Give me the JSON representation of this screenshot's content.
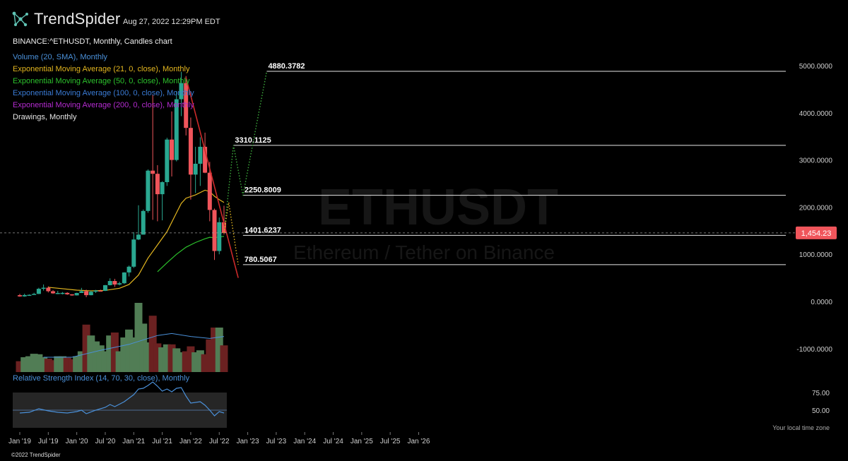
{
  "header": {
    "brand": "TrendSpider",
    "timestamp": "Aug 27, 2022 12:29PM EDT",
    "symbol": "BINANCE:^ETHUSDT, Monthly, Candles chart",
    "watermark": "ETHUSDT",
    "watermark_sub": "Ethereum / Tether on Binance",
    "logo_icon": "network-nodes-icon"
  },
  "legend": [
    {
      "label": "Volume (20, SMA), Monthly",
      "color": "#4a90d9"
    },
    {
      "label": "Exponential Moving Average (21, 0, close), Monthly",
      "color": "#e3b61f"
    },
    {
      "label": "Exponential Moving Average (50, 0, close), Monthly",
      "color": "#2cc12c"
    },
    {
      "label": "Exponential Moving Average (100, 0, close), Monthly",
      "color": "#3a7bd5"
    },
    {
      "label": "Exponential Moving Average (200, 0, close), Monthly",
      "color": "#b52bd1"
    },
    {
      "label": "Drawings, Monthly",
      "color": "#e6e6e6"
    }
  ],
  "rsi": {
    "title": "Relative Strength Index (14, 70, 30, close), Monthly",
    "levels": [
      75,
      50
    ]
  },
  "footer": {
    "timezone_note": "Your local time zone",
    "copyright": "©2022 TrendSpider"
  },
  "colors": {
    "up": "#2aa891",
    "down": "#f0555b",
    "vol_up": "#517d55",
    "vol_down": "#6b2121",
    "ema21": "#e3b61f",
    "ema50": "#2cc12c",
    "price_tag": "#f0555b",
    "trendline": "#cc2a2a"
  },
  "chart_data": {
    "type": "candlestick",
    "y_axis": {
      "ticks": [
        "5000.0000",
        "4000.0000",
        "3000.0000",
        "2000.0000",
        "1000.0000",
        "0.0000",
        "-1000.0000"
      ],
      "tick_values": [
        5000,
        4000,
        3000,
        2000,
        1000,
        0,
        -1000
      ],
      "ylim": [
        -1500,
        5200
      ]
    },
    "x_axis": {
      "ticks": [
        "Jan '19",
        "Jul '19",
        "Jan '20",
        "Jul '20",
        "Jan '21",
        "Jul '21",
        "Jan '22",
        "Jul '22",
        "Jan '23",
        "Jul '23",
        "Jan '24",
        "Jul '24",
        "Jan '25",
        "Jul '25",
        "Jan '26"
      ],
      "start": "2019-01",
      "end": "2026-01"
    },
    "current_price": {
      "label": "1,454.23",
      "value": 1454.23
    },
    "candles": [
      {
        "t": "2019-01",
        "o": 133,
        "h": 160,
        "l": 100,
        "c": 107
      },
      {
        "t": "2019-02",
        "o": 107,
        "h": 165,
        "l": 100,
        "c": 136
      },
      {
        "t": "2019-03",
        "o": 136,
        "h": 150,
        "l": 128,
        "c": 141
      },
      {
        "t": "2019-04",
        "o": 141,
        "h": 185,
        "l": 140,
        "c": 160
      },
      {
        "t": "2019-05",
        "o": 160,
        "h": 290,
        "l": 155,
        "c": 268
      },
      {
        "t": "2019-06",
        "o": 268,
        "h": 360,
        "l": 230,
        "c": 291
      },
      {
        "t": "2019-07",
        "o": 291,
        "h": 320,
        "l": 190,
        "c": 217
      },
      {
        "t": "2019-08",
        "o": 217,
        "h": 240,
        "l": 160,
        "c": 172
      },
      {
        "t": "2019-09",
        "o": 172,
        "h": 225,
        "l": 155,
        "c": 180
      },
      {
        "t": "2019-10",
        "o": 180,
        "h": 200,
        "l": 150,
        "c": 182
      },
      {
        "t": "2019-11",
        "o": 182,
        "h": 195,
        "l": 140,
        "c": 151
      },
      {
        "t": "2019-12",
        "o": 151,
        "h": 155,
        "l": 120,
        "c": 129
      },
      {
        "t": "2020-01",
        "o": 129,
        "h": 185,
        "l": 126,
        "c": 180
      },
      {
        "t": "2020-02",
        "o": 180,
        "h": 288,
        "l": 180,
        "c": 218
      },
      {
        "t": "2020-03",
        "o": 218,
        "h": 250,
        "l": 90,
        "c": 133
      },
      {
        "t": "2020-04",
        "o": 133,
        "h": 228,
        "l": 130,
        "c": 206
      },
      {
        "t": "2020-05",
        "o": 206,
        "h": 245,
        "l": 180,
        "c": 231
      },
      {
        "t": "2020-06",
        "o": 231,
        "h": 250,
        "l": 215,
        "c": 225
      },
      {
        "t": "2020-07",
        "o": 225,
        "h": 350,
        "l": 220,
        "c": 345
      },
      {
        "t": "2020-08",
        "o": 345,
        "h": 490,
        "l": 340,
        "c": 434
      },
      {
        "t": "2020-09",
        "o": 434,
        "h": 480,
        "l": 310,
        "c": 359
      },
      {
        "t": "2020-10",
        "o": 359,
        "h": 420,
        "l": 340,
        "c": 386
      },
      {
        "t": "2020-11",
        "o": 386,
        "h": 620,
        "l": 370,
        "c": 615
      },
      {
        "t": "2020-12",
        "o": 615,
        "h": 760,
        "l": 530,
        "c": 737
      },
      {
        "t": "2021-01",
        "o": 737,
        "h": 1470,
        "l": 710,
        "c": 1314
      },
      {
        "t": "2021-02",
        "o": 1314,
        "h": 2040,
        "l": 1300,
        "c": 1417
      },
      {
        "t": "2021-03",
        "o": 1417,
        "h": 1950,
        "l": 1420,
        "c": 1919
      },
      {
        "t": "2021-04",
        "o": 1919,
        "h": 2800,
        "l": 1880,
        "c": 2774
      },
      {
        "t": "2021-05",
        "o": 2774,
        "h": 4380,
        "l": 1730,
        "c": 2707
      },
      {
        "t": "2021-06",
        "o": 2707,
        "h": 2890,
        "l": 1700,
        "c": 2274
      },
      {
        "t": "2021-07",
        "o": 2274,
        "h": 2550,
        "l": 1720,
        "c": 2530
      },
      {
        "t": "2021-08",
        "o": 2530,
        "h": 3470,
        "l": 2450,
        "c": 3433
      },
      {
        "t": "2021-09",
        "o": 3433,
        "h": 4030,
        "l": 2650,
        "c": 3000
      },
      {
        "t": "2021-10",
        "o": 3000,
        "h": 4460,
        "l": 2970,
        "c": 4288
      },
      {
        "t": "2021-11",
        "o": 4288,
        "h": 4870,
        "l": 3930,
        "c": 4630
      },
      {
        "t": "2021-12",
        "o": 4630,
        "h": 4780,
        "l": 3520,
        "c": 3680
      },
      {
        "t": "2022-01",
        "o": 3680,
        "h": 3900,
        "l": 2160,
        "c": 2690
      },
      {
        "t": "2022-02",
        "o": 2690,
        "h": 3280,
        "l": 2300,
        "c": 2920
      },
      {
        "t": "2022-03",
        "o": 2920,
        "h": 3480,
        "l": 2450,
        "c": 3280
      },
      {
        "t": "2022-04",
        "o": 3280,
        "h": 3580,
        "l": 2720,
        "c": 2730
      },
      {
        "t": "2022-05",
        "o": 2730,
        "h": 2960,
        "l": 1700,
        "c": 1940
      },
      {
        "t": "2022-06",
        "o": 1940,
        "h": 1970,
        "l": 880,
        "c": 1070
      },
      {
        "t": "2022-07",
        "o": 1070,
        "h": 1780,
        "l": 1000,
        "c": 1680
      },
      {
        "t": "2022-08",
        "o": 1680,
        "h": 2030,
        "l": 1420,
        "c": 1454
      }
    ],
    "ema21": [
      {
        "t": "2019-07",
        "v": 300
      },
      {
        "t": "2019-10",
        "v": 270
      },
      {
        "t": "2020-01",
        "v": 240
      },
      {
        "t": "2020-04",
        "v": 225
      },
      {
        "t": "2020-07",
        "v": 235
      },
      {
        "t": "2020-10",
        "v": 280
      },
      {
        "t": "2020-12",
        "v": 360
      },
      {
        "t": "2021-02",
        "v": 560
      },
      {
        "t": "2021-04",
        "v": 920
      },
      {
        "t": "2021-06",
        "v": 1200
      },
      {
        "t": "2021-08",
        "v": 1480
      },
      {
        "t": "2021-10",
        "v": 1880
      },
      {
        "t": "2021-11",
        "v": 2080
      },
      {
        "t": "2021-12",
        "v": 2190
      },
      {
        "t": "2022-02",
        "v": 2260
      },
      {
        "t": "2022-04",
        "v": 2360
      },
      {
        "t": "2022-05",
        "v": 2330
      },
      {
        "t": "2022-06",
        "v": 2230
      },
      {
        "t": "2022-07",
        "v": 2160
      },
      {
        "t": "2022-08",
        "v": 2100
      }
    ],
    "ema50": [
      {
        "t": "2021-06",
        "v": 630
      },
      {
        "t": "2021-08",
        "v": 820
      },
      {
        "t": "2021-10",
        "v": 1000
      },
      {
        "t": "2021-12",
        "v": 1150
      },
      {
        "t": "2022-02",
        "v": 1250
      },
      {
        "t": "2022-04",
        "v": 1330
      },
      {
        "t": "2022-05",
        "v": 1360
      },
      {
        "t": "2022-06",
        "v": 1350
      },
      {
        "t": "2022-07",
        "v": 1370
      },
      {
        "t": "2022-08",
        "v": 1380
      }
    ],
    "volume": [
      {
        "t": "2019-01",
        "v": 0.22,
        "up": false
      },
      {
        "t": "2019-02",
        "v": 0.3,
        "up": true
      },
      {
        "t": "2019-03",
        "v": 0.32,
        "up": true
      },
      {
        "t": "2019-04",
        "v": 0.37,
        "up": true
      },
      {
        "t": "2019-05",
        "v": 0.36,
        "up": true
      },
      {
        "t": "2019-06",
        "v": 0.3,
        "up": true
      },
      {
        "t": "2019-07",
        "v": 0.27,
        "up": false
      },
      {
        "t": "2019-08",
        "v": 0.24,
        "up": false
      },
      {
        "t": "2019-09",
        "v": 0.32,
        "up": true
      },
      {
        "t": "2019-10",
        "v": 0.32,
        "up": true
      },
      {
        "t": "2019-11",
        "v": 0.29,
        "up": false
      },
      {
        "t": "2019-12",
        "v": 0.26,
        "up": false
      },
      {
        "t": "2020-01",
        "v": 0.32,
        "up": true
      },
      {
        "t": "2020-02",
        "v": 0.42,
        "up": true
      },
      {
        "t": "2020-03",
        "v": 0.96,
        "up": false
      },
      {
        "t": "2020-04",
        "v": 0.74,
        "up": true
      },
      {
        "t": "2020-05",
        "v": 0.62,
        "up": true
      },
      {
        "t": "2020-06",
        "v": 0.54,
        "up": true
      },
      {
        "t": "2020-07",
        "v": 0.42,
        "up": true
      },
      {
        "t": "2020-08",
        "v": 0.74,
        "up": true
      },
      {
        "t": "2020-09",
        "v": 0.8,
        "up": false
      },
      {
        "t": "2020-10",
        "v": 0.42,
        "up": true
      },
      {
        "t": "2020-11",
        "v": 0.7,
        "up": true
      },
      {
        "t": "2020-12",
        "v": 0.86,
        "up": true
      },
      {
        "t": "2021-01",
        "v": 0.7,
        "up": true
      },
      {
        "t": "2021-02",
        "v": 1.4,
        "up": true
      },
      {
        "t": "2021-03",
        "v": 0.98,
        "up": true
      },
      {
        "t": "2021-04",
        "v": 0.6,
        "up": true
      },
      {
        "t": "2021-05",
        "v": 1.14,
        "up": false
      },
      {
        "t": "2021-06",
        "v": 0.58,
        "up": false
      },
      {
        "t": "2021-07",
        "v": 0.5,
        "up": true
      },
      {
        "t": "2021-08",
        "v": 0.56,
        "up": true
      },
      {
        "t": "2021-09",
        "v": 0.56,
        "up": false
      },
      {
        "t": "2021-10",
        "v": 0.48,
        "up": true
      },
      {
        "t": "2021-11",
        "v": 0.4,
        "up": true
      },
      {
        "t": "2021-12",
        "v": 0.42,
        "up": false
      },
      {
        "t": "2022-01",
        "v": 0.52,
        "up": false
      },
      {
        "t": "2022-02",
        "v": 0.4,
        "up": true
      },
      {
        "t": "2022-03",
        "v": 0.44,
        "up": true
      },
      {
        "t": "2022-04",
        "v": 0.36,
        "up": false
      },
      {
        "t": "2022-05",
        "v": 0.66,
        "up": false
      },
      {
        "t": "2022-06",
        "v": 0.9,
        "up": false
      },
      {
        "t": "2022-07",
        "v": 0.9,
        "up": true
      },
      {
        "t": "2022-08",
        "v": 0.54,
        "up": false
      }
    ],
    "volume_sma": [
      {
        "t": "2019-06",
        "v": 0.3
      },
      {
        "t": "2019-12",
        "v": 0.3
      },
      {
        "t": "2020-06",
        "v": 0.44
      },
      {
        "t": "2020-12",
        "v": 0.56
      },
      {
        "t": "2021-06",
        "v": 0.74
      },
      {
        "t": "2021-09",
        "v": 0.78
      },
      {
        "t": "2022-01",
        "v": 0.72
      },
      {
        "t": "2022-05",
        "v": 0.68
      },
      {
        "t": "2022-08",
        "v": 0.72
      }
    ],
    "rsi_series": [
      {
        "t": "2019-01",
        "v": 46
      },
      {
        "t": "2019-03",
        "v": 47
      },
      {
        "t": "2019-05",
        "v": 52
      },
      {
        "t": "2019-07",
        "v": 49
      },
      {
        "t": "2019-09",
        "v": 47
      },
      {
        "t": "2019-11",
        "v": 46
      },
      {
        "t": "2020-01",
        "v": 48
      },
      {
        "t": "2020-02",
        "v": 50
      },
      {
        "t": "2020-03",
        "v": 45
      },
      {
        "t": "2020-05",
        "v": 50
      },
      {
        "t": "2020-07",
        "v": 54
      },
      {
        "t": "2020-08",
        "v": 58
      },
      {
        "t": "2020-09",
        "v": 55
      },
      {
        "t": "2020-11",
        "v": 62
      },
      {
        "t": "2021-01",
        "v": 72
      },
      {
        "t": "2021-02",
        "v": 80
      },
      {
        "t": "2021-03",
        "v": 81
      },
      {
        "t": "2021-04",
        "v": 85
      },
      {
        "t": "2021-05",
        "v": 90
      },
      {
        "t": "2021-06",
        "v": 84
      },
      {
        "t": "2021-07",
        "v": 77
      },
      {
        "t": "2021-08",
        "v": 80
      },
      {
        "t": "2021-09",
        "v": 76
      },
      {
        "t": "2021-10",
        "v": 81
      },
      {
        "t": "2021-11",
        "v": 82
      },
      {
        "t": "2021-12",
        "v": 70
      },
      {
        "t": "2022-01",
        "v": 60
      },
      {
        "t": "2022-03",
        "v": 62
      },
      {
        "t": "2022-04",
        "v": 57
      },
      {
        "t": "2022-05",
        "v": 50
      },
      {
        "t": "2022-06",
        "v": 42
      },
      {
        "t": "2022-07",
        "v": 48
      },
      {
        "t": "2022-08",
        "v": 46
      }
    ],
    "horizontal_levels": [
      {
        "label": "4880.3782",
        "value": 4880.3782,
        "from": "2023-05"
      },
      {
        "label": "3310.1125",
        "value": 3310.1125,
        "from": "2022-10"
      },
      {
        "label": "2250.8009",
        "value": 2250.8009,
        "from": "2022-12"
      },
      {
        "label": "1401.6237",
        "value": 1401.6237,
        "from": "2022-12"
      },
      {
        "label": "780.5067",
        "value": 780.5067,
        "from": "2022-12"
      }
    ],
    "trendline": [
      {
        "t": "2021-12",
        "v": 4750
      },
      {
        "t": "2022-11",
        "v": 500
      }
    ],
    "projection_green": [
      {
        "t": "2022-08",
        "v": 1454
      },
      {
        "t": "2022-10",
        "v": 3310
      },
      {
        "t": "2022-12",
        "v": 2250
      },
      {
        "t": "2023-05",
        "v": 4880
      }
    ],
    "projection_yellow": [
      {
        "t": "2022-08",
        "v": 1454
      },
      {
        "t": "2022-09",
        "v": 2100
      },
      {
        "t": "2022-11",
        "v": 780
      }
    ]
  }
}
